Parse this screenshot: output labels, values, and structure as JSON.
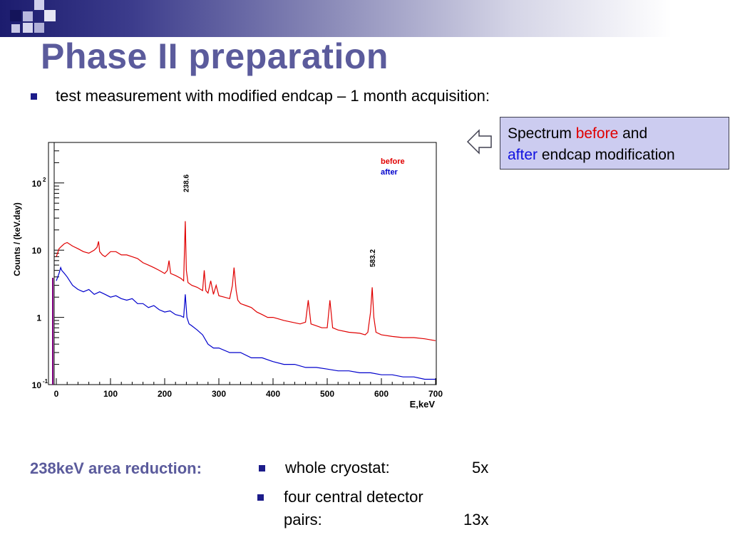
{
  "slide": {
    "title": "Phase II preparation",
    "bullet": "test measurement with modified endcap – 1 month acquisition:"
  },
  "callout": {
    "line1_a": "Spectrum ",
    "line1_before": "before",
    "line1_b": " and",
    "line2_after": "after",
    "line2_b": " endcap modification"
  },
  "results": {
    "label": "238keV area reduction:",
    "rows": [
      {
        "label": "whole cryostat:",
        "value": "5x"
      },
      {
        "label_line1": "four central detector",
        "label_line2": "pairs:",
        "value": "13x"
      }
    ]
  },
  "colors": {
    "before": "#e00000",
    "after": "#0000cc",
    "title": "#5b5b9c",
    "callout_bg": "#ccccf0"
  },
  "chart_data": {
    "type": "line",
    "xlabel": "E,keV",
    "ylabel": "Counts / (keV.day)",
    "xlim": [
      0,
      700
    ],
    "ylim": [
      0.1,
      400
    ],
    "yscale": "log",
    "x_ticks": [
      "0",
      "100",
      "200",
      "300",
      "400",
      "500",
      "600",
      "700"
    ],
    "y_ticks": [
      {
        "base": "10",
        "exp": "-1"
      },
      {
        "base": "1",
        "exp": ""
      },
      {
        "base": "10",
        "exp": ""
      },
      {
        "base": "10",
        "exp": "2"
      }
    ],
    "legend": [
      "before",
      "after"
    ],
    "legend_position": "top-right",
    "annotations": [
      {
        "text": "238.6",
        "x": 238.6
      },
      {
        "text": "583.2",
        "x": 583.2
      }
    ],
    "series": [
      {
        "name": "before",
        "x": [
          0,
          5,
          10,
          15,
          20,
          30,
          40,
          50,
          60,
          70,
          75,
          78,
          80,
          85,
          90,
          100,
          110,
          120,
          130,
          140,
          150,
          160,
          170,
          180,
          190,
          200,
          205,
          208,
          211,
          220,
          230,
          235,
          238,
          240,
          243,
          250,
          260,
          270,
          273,
          276,
          280,
          285,
          290,
          295,
          300,
          310,
          320,
          325,
          328,
          332,
          335,
          340,
          350,
          360,
          370,
          380,
          390,
          400,
          410,
          420,
          450,
          460,
          465,
          470,
          480,
          490,
          500,
          505,
          510,
          520,
          540,
          560,
          570,
          575,
          580,
          583,
          586,
          590,
          600,
          620,
          640,
          660,
          680,
          700
        ],
        "y": [
          8,
          10.5,
          11.5,
          12.5,
          13,
          11.5,
          10.5,
          9.5,
          9,
          10,
          11,
          13.5,
          9.5,
          8.5,
          8,
          9.5,
          9.5,
          8.5,
          8.5,
          8,
          7.5,
          6.5,
          6,
          5.5,
          5,
          4.5,
          5,
          7,
          4.5,
          4.2,
          3.8,
          3.5,
          27,
          5,
          3.3,
          3,
          2.8,
          2.5,
          5,
          2.5,
          2.3,
          3.5,
          2.2,
          3,
          2.1,
          2,
          1.9,
          3,
          5.5,
          2.5,
          1.8,
          1.6,
          1.5,
          1.4,
          1.2,
          1.1,
          1.0,
          1.0,
          0.95,
          0.9,
          0.8,
          0.85,
          1.8,
          0.8,
          0.75,
          0.7,
          0.7,
          1.8,
          0.7,
          0.65,
          0.6,
          0.58,
          0.55,
          0.6,
          1.2,
          2.8,
          1.0,
          0.6,
          0.55,
          0.52,
          0.5,
          0.5,
          0.48,
          0.45
        ]
      },
      {
        "name": "after",
        "x": [
          0,
          5,
          8,
          10,
          15,
          20,
          30,
          40,
          50,
          60,
          70,
          80,
          90,
          100,
          110,
          120,
          130,
          140,
          150,
          160,
          170,
          180,
          190,
          200,
          210,
          220,
          230,
          235,
          238,
          241,
          245,
          250,
          260,
          270,
          280,
          290,
          300,
          320,
          340,
          360,
          380,
          400,
          420,
          440,
          460,
          480,
          500,
          520,
          540,
          560,
          580,
          600,
          620,
          640,
          660,
          680,
          700
        ],
        "y": [
          3.5,
          4.5,
          5.5,
          5,
          4.5,
          4,
          3,
          2.6,
          2.4,
          2.6,
          2.2,
          2.4,
          2.2,
          2.0,
          2.1,
          1.9,
          1.8,
          1.9,
          1.6,
          1.6,
          1.4,
          1.5,
          1.3,
          1.2,
          1.25,
          1.1,
          1.05,
          1.0,
          2.2,
          1.0,
          0.8,
          0.75,
          0.65,
          0.55,
          0.4,
          0.35,
          0.35,
          0.3,
          0.3,
          0.25,
          0.25,
          0.22,
          0.2,
          0.2,
          0.18,
          0.18,
          0.17,
          0.16,
          0.16,
          0.15,
          0.15,
          0.14,
          0.14,
          0.13,
          0.13,
          0.12,
          0.12
        ]
      }
    ]
  }
}
